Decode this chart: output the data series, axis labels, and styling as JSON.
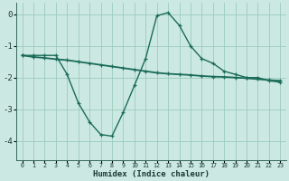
{
  "xlabel": "Humidex (Indice chaleur)",
  "background_color": "#cce8e2",
  "grid_color": "#99ccbb",
  "line_color": "#1a6b5a",
  "x_ticks": [
    0,
    1,
    2,
    3,
    4,
    5,
    6,
    7,
    8,
    9,
    10,
    11,
    12,
    13,
    14,
    15,
    16,
    17,
    18,
    19,
    20,
    21,
    22,
    23
  ],
  "y_ticks": [
    0,
    -1,
    -2,
    -3,
    -4
  ],
  "ylim": [
    -4.6,
    0.35
  ],
  "xlim": [
    -0.5,
    23.5
  ],
  "line1_x": [
    0,
    1,
    2,
    3,
    4,
    5,
    6,
    7,
    8,
    9,
    10,
    11,
    12,
    13,
    14,
    15,
    16,
    17,
    18,
    19,
    20,
    21,
    22,
    23
  ],
  "line1_y": [
    -1.3,
    -1.3,
    -1.3,
    -1.3,
    -1.9,
    -2.8,
    -3.4,
    -3.8,
    -3.85,
    -3.1,
    -2.25,
    -1.4,
    -0.05,
    0.05,
    -0.35,
    -1.0,
    -1.4,
    -1.55,
    -1.8,
    -1.9,
    -2.0,
    -2.0,
    -2.1,
    -2.15
  ],
  "line2_x": [
    0,
    1,
    2,
    3,
    4,
    5,
    6,
    7,
    8,
    9,
    10,
    11,
    12,
    13,
    14,
    15,
    16,
    17,
    18,
    19,
    20,
    21,
    22,
    23
  ],
  "line2_y": [
    -1.3,
    -1.35,
    -1.38,
    -1.42,
    -1.45,
    -1.5,
    -1.55,
    -1.6,
    -1.65,
    -1.7,
    -1.75,
    -1.8,
    -1.85,
    -1.88,
    -1.9,
    -1.92,
    -1.95,
    -1.97,
    -1.98,
    -2.0,
    -2.02,
    -2.05,
    -2.08,
    -2.1
  ]
}
